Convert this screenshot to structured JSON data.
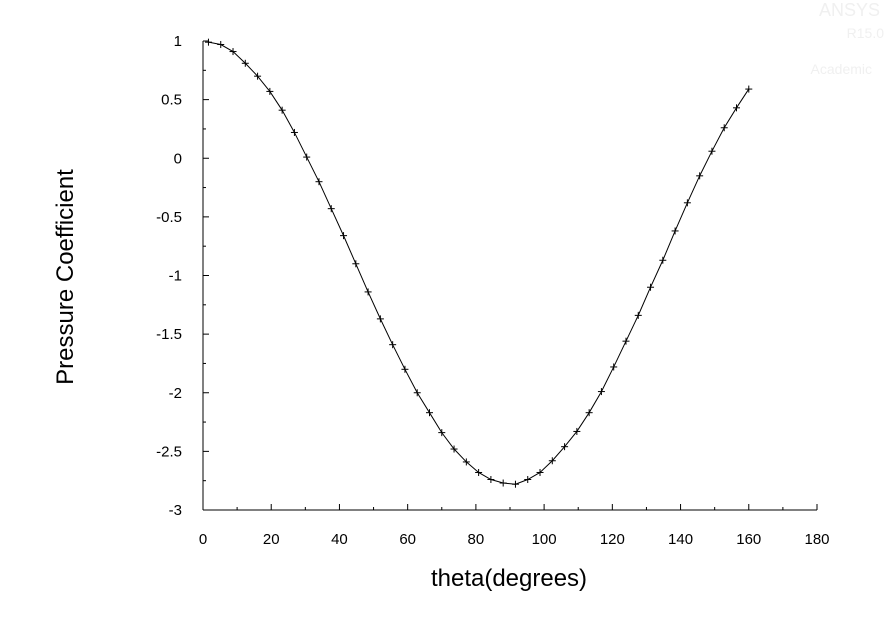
{
  "watermark": {
    "line1": "ANSYS",
    "line2": "R15.0",
    "line3": "Academic"
  },
  "chart_data": {
    "type": "line",
    "xlabel": "theta(degrees)",
    "ylabel": "Pressure Coefficient",
    "xlim": [
      0,
      180
    ],
    "ylim": [
      -3,
      1
    ],
    "xticks": [
      "0",
      "20",
      "40",
      "60",
      "80",
      "100",
      "120",
      "140",
      "160",
      "180"
    ],
    "yticks": [
      "1",
      "0.5",
      "0",
      "-0.5",
      "-1",
      "-1.5",
      "-2",
      "-2.5",
      "-3"
    ],
    "grid": false,
    "marker": "plus",
    "series": [
      {
        "x": [
          1.6,
          5.2,
          8.8,
          12.4,
          16.0,
          19.6,
          23.2,
          26.8,
          30.4,
          34.0,
          37.6,
          41.2,
          44.8,
          48.4,
          52.0,
          55.6,
          59.2,
          62.8,
          66.4,
          70.0,
          73.6,
          77.2,
          80.8,
          84.4,
          88.0,
          91.6,
          95.2,
          98.8,
          102.4,
          106.0,
          109.6,
          113.2,
          116.8,
          120.4,
          124.0,
          127.6,
          131.2,
          134.8,
          138.4,
          142.0,
          145.6,
          149.2,
          152.8,
          156.4,
          160.0
        ],
        "y": [
          0.99,
          0.97,
          0.91,
          0.81,
          0.7,
          0.57,
          0.41,
          0.22,
          0.01,
          -0.2,
          -0.43,
          -0.66,
          -0.9,
          -1.14,
          -1.37,
          -1.59,
          -1.8,
          -2.0,
          -2.17,
          -2.34,
          -2.48,
          -2.59,
          -2.68,
          -2.74,
          -2.77,
          -2.78,
          -2.74,
          -2.68,
          -2.58,
          -2.46,
          -2.33,
          -2.17,
          -1.99,
          -1.78,
          -1.56,
          -1.34,
          -1.1,
          -0.87,
          -0.62,
          -0.38,
          -0.15,
          0.06,
          0.26,
          0.43,
          0.59
        ]
      }
    ]
  }
}
